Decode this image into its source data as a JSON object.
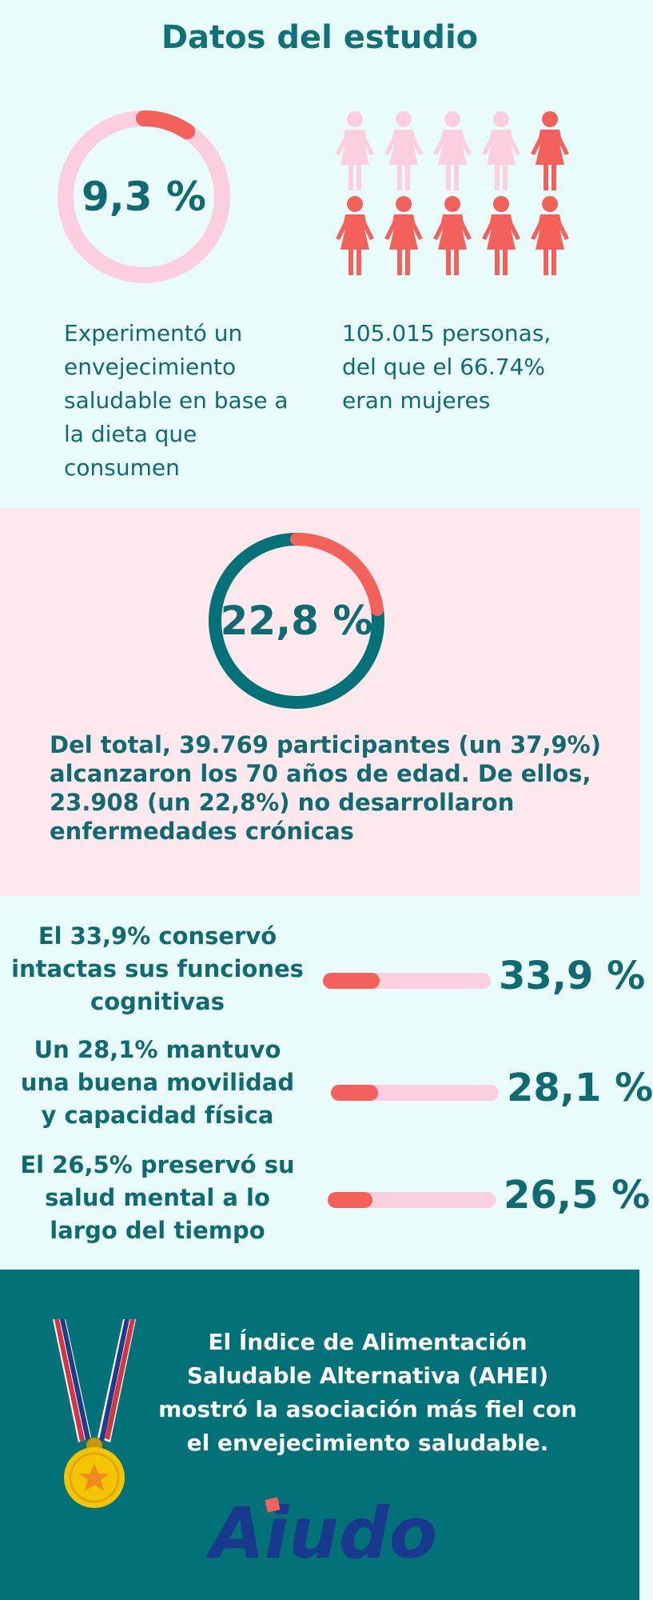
{
  "title": "Datos del estudio",
  "colors": {
    "teal": "#0f6b71",
    "coral": "#f4605a",
    "light_pink": "#fccfe0",
    "panel_teal": "#037278",
    "panel_pink": "#fde8ee",
    "panel_mint": "#e9fcfb",
    "medal_gold": "#f5c400",
    "logo_blue": "#173a8c"
  },
  "section1": {
    "ring_percent_label": "9,3 %",
    "ring_value": 9.3,
    "ring_text": "Experimentó un envejecimiento saludable en base a la dieta que consumen",
    "people_text": "105.015 personas, del que el 66.74% eran mujeres",
    "people_total": 10,
    "people_highlighted_first_row_last": 1,
    "icon": "woman-figure-icon"
  },
  "section2": {
    "ring_percent_label": "22,8 %",
    "ring_value": 22.8,
    "text": "Del total, 39.769 participantes (un 37,9%) alcanzaron los 70 años de edad. De ellos, 23.908 (un 22,8%) no desarrollaron enfermedades crónicas"
  },
  "section3": {
    "rows": [
      {
        "text": "El 33,9% conservó intactas sus funciones cognitivas",
        "percent_label": "33,9 %",
        "value": 33.9
      },
      {
        "text": "Un 28,1% mantuvo una buena movilidad y capacidad física",
        "percent_label": "28,1 %",
        "value": 28.1
      },
      {
        "text": "El 26,5% preservó su salud mental a lo largo del tiempo",
        "percent_label": "26,5 %",
        "value": 26.5
      }
    ]
  },
  "section4": {
    "text": "El Índice de Alimentación Saludable Alternativa (AHEI) mostró la asociación más fiel con el envejecimiento saludable.",
    "medal_icon": "medal-icon",
    "logo_text": "Aiudo"
  }
}
